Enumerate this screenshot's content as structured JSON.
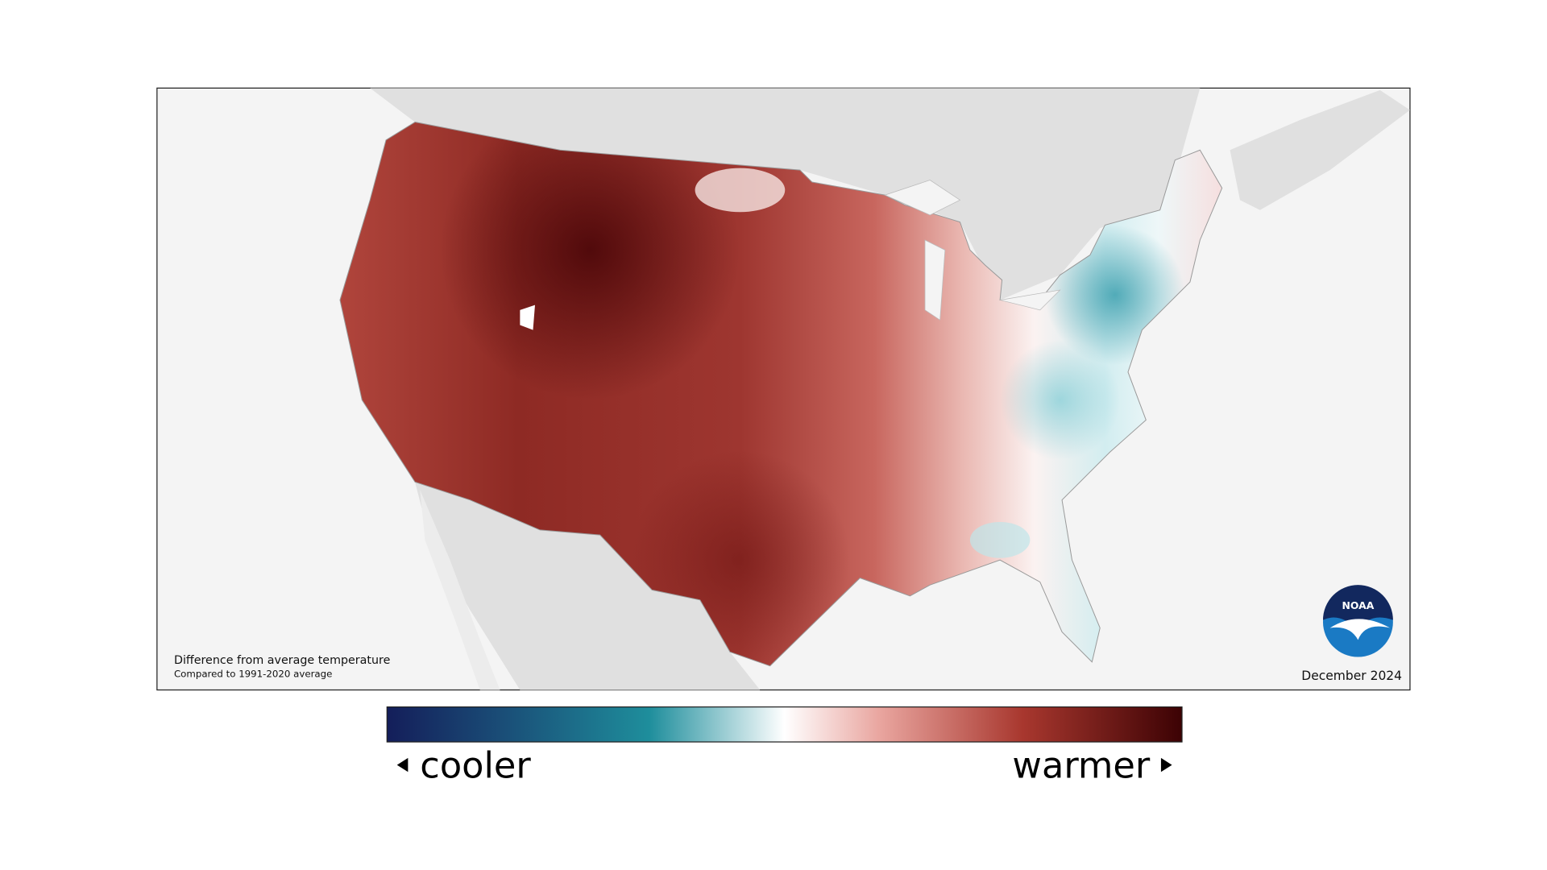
{
  "map": {
    "caption": "Difference from average temperature",
    "subcaption": "Compared to 1991-2020 average",
    "date": "December 2024",
    "logo": "NOAA"
  },
  "legend": {
    "low": "cooler",
    "high": "warmer"
  }
}
